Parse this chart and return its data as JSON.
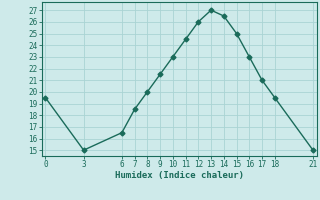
{
  "x": [
    0,
    3,
    6,
    7,
    8,
    9,
    10,
    11,
    12,
    13,
    14,
    15,
    16,
    17,
    18,
    21
  ],
  "y": [
    19.5,
    15,
    16.5,
    18.5,
    20,
    21.5,
    23,
    24.5,
    26,
    27,
    26.5,
    25,
    23,
    21,
    19.5,
    15
  ],
  "xticks": [
    0,
    3,
    6,
    7,
    8,
    9,
    10,
    11,
    12,
    13,
    14,
    15,
    16,
    17,
    18,
    21
  ],
  "yticks": [
    15,
    16,
    17,
    18,
    19,
    20,
    21,
    22,
    23,
    24,
    25,
    26,
    27
  ],
  "xlim": [
    -0.3,
    21.3
  ],
  "ylim": [
    14.5,
    27.7
  ],
  "xlabel": "Humidex (Indice chaleur)",
  "line_color": "#1a6b5a",
  "bg_color": "#ceeaea",
  "grid_color": "#aad4d4",
  "marker": "D",
  "marker_size": 2.5,
  "linewidth": 1.0,
  "tick_fontsize": 5.5,
  "xlabel_fontsize": 6.5
}
